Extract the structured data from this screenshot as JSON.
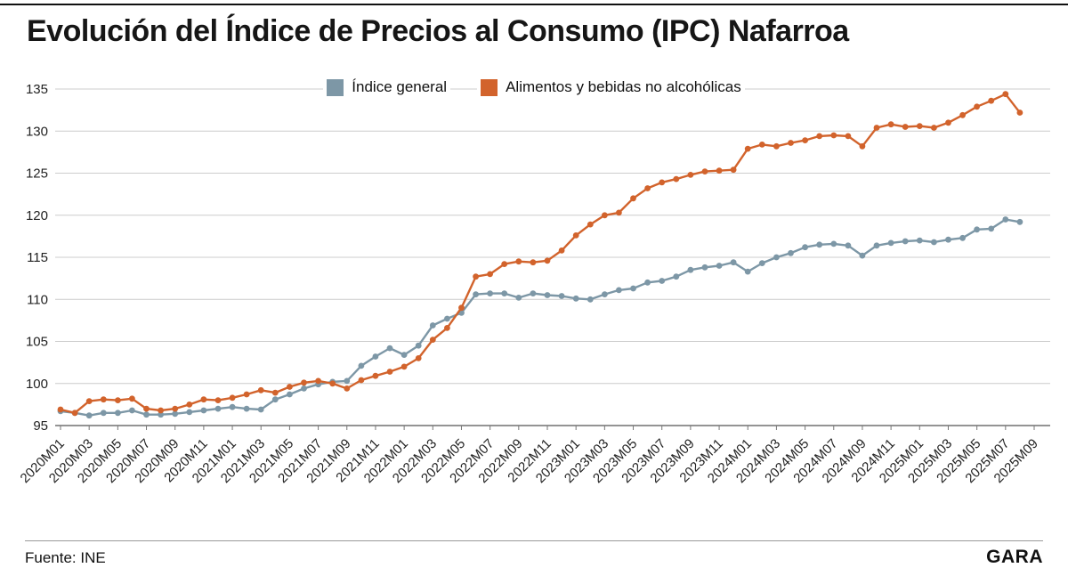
{
  "page": {
    "title": "Evolución del Índice de Precios al Consumo (IPC) Nafarroa",
    "source": "Fuente: INE",
    "brand": "GARA"
  },
  "chart_data": {
    "type": "line",
    "title": "Evolución del Índice de Precios al Consumo (IPC) Nafarroa",
    "ylim": [
      95,
      135
    ],
    "ytick_step": 5,
    "grid": "horizontal",
    "legend_position": "top-center",
    "months_total": 68,
    "x_start": "2020M01",
    "x_end_label": "2025M09",
    "x_tick_labels": [
      "2020M01",
      "2020M03",
      "2020M05",
      "2020M07",
      "2020M09",
      "2020M11",
      "2021M01",
      "2021M03",
      "2021M05",
      "2021M07",
      "2021M09",
      "2021M11",
      "2022M01",
      "2022M03",
      "2022M05",
      "2022M07",
      "2022M09",
      "2022M11",
      "2023M01",
      "2023M03",
      "2023M05",
      "2023M07",
      "2023M09",
      "2023M11",
      "2024M01",
      "2024M03",
      "2024M05",
      "2024M07",
      "2024M09",
      "2024M11",
      "2025M01",
      "2025M03",
      "2025M05",
      "2025M07",
      "2025M09"
    ],
    "series": [
      {
        "name": "Índice general",
        "color": "#7d97a6",
        "values": [
          96.7,
          96.5,
          96.2,
          96.5,
          96.5,
          96.8,
          96.3,
          96.3,
          96.4,
          96.6,
          96.8,
          97.0,
          97.2,
          97.0,
          96.9,
          98.1,
          98.7,
          99.4,
          99.9,
          100.2,
          100.3,
          102.1,
          103.2,
          104.2,
          103.4,
          104.5,
          106.9,
          107.7,
          108.4,
          110.6,
          110.7,
          110.7,
          110.2,
          110.7,
          110.5,
          110.4,
          110.1,
          110.0,
          110.6,
          111.1,
          111.3,
          112.0,
          112.2,
          112.7,
          113.5,
          113.8,
          114.0,
          114.4,
          113.3,
          114.3,
          115.0,
          115.5,
          116.2,
          116.5,
          116.6,
          116.4,
          115.2,
          116.4,
          116.7,
          116.9,
          117.0,
          116.8,
          117.1,
          117.3,
          118.3,
          118.4,
          119.5,
          119.2
        ]
      },
      {
        "name": "Alimentos y bebidas no alcohólicas",
        "color": "#d2632c",
        "values": [
          96.9,
          96.5,
          97.9,
          98.1,
          98.0,
          98.2,
          97.0,
          96.8,
          97.0,
          97.5,
          98.1,
          98.0,
          98.3,
          98.7,
          99.2,
          98.9,
          99.6,
          100.1,
          100.3,
          100.0,
          99.4,
          100.4,
          100.9,
          101.4,
          102.0,
          103.0,
          105.2,
          106.6,
          109.0,
          112.7,
          113.0,
          114.2,
          114.5,
          114.4,
          114.6,
          115.8,
          117.6,
          118.9,
          120.0,
          120.3,
          122.0,
          123.2,
          123.9,
          124.3,
          124.8,
          125.2,
          125.3,
          125.4,
          127.9,
          128.4,
          128.2,
          128.6,
          128.9,
          129.4,
          129.5,
          129.4,
          128.2,
          130.4,
          130.8,
          130.5,
          130.6,
          130.4,
          131.0,
          131.9,
          132.9,
          133.6,
          134.4,
          132.2
        ]
      }
    ]
  }
}
